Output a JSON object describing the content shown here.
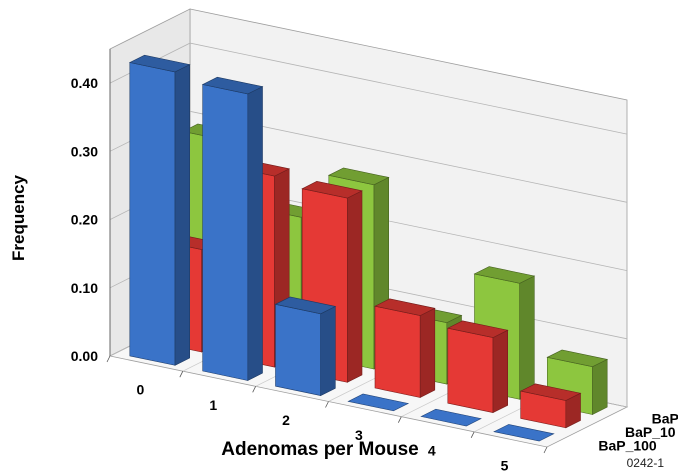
{
  "chart_data": {
    "type": "bar",
    "xlabel": "Adenomas per Mouse",
    "ylabel": "Frequency",
    "categories": [
      "0",
      "1",
      "2",
      "3",
      "4",
      "5"
    ],
    "yticks": [
      "0.00",
      "0.10",
      "0.20",
      "0.30",
      "0.40"
    ],
    "ylim": [
      0,
      0.45
    ],
    "grid": true,
    "series": [
      {
        "name": "BaP_100",
        "color": "#3a73c8",
        "values": [
          0.43,
          0.42,
          0.12,
          0.0,
          0.0,
          0.0
        ]
      },
      {
        "name": "BaP_10",
        "color": "#e53935",
        "values": [
          0.15,
          0.28,
          0.27,
          0.12,
          0.11,
          0.04
        ]
      },
      {
        "name": "BaP",
        "color": "#8dc63f",
        "values": [
          0.29,
          0.2,
          0.27,
          0.09,
          0.17,
          0.07
        ]
      }
    ]
  },
  "figure_code": "0242-1"
}
